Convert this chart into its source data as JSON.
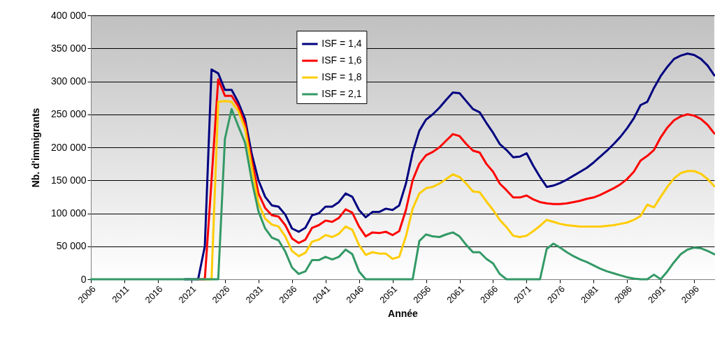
{
  "chart_data": {
    "type": "line",
    "xlabel": "Année",
    "ylabel": "Nb. d'immigrants",
    "x": [
      2006,
      2007,
      2008,
      2009,
      2010,
      2011,
      2012,
      2013,
      2014,
      2015,
      2016,
      2017,
      2018,
      2019,
      2020,
      2021,
      2022,
      2023,
      2024,
      2025,
      2026,
      2027,
      2028,
      2029,
      2030,
      2031,
      2032,
      2033,
      2034,
      2035,
      2036,
      2037,
      2038,
      2039,
      2040,
      2041,
      2042,
      2043,
      2044,
      2045,
      2046,
      2047,
      2048,
      2049,
      2050,
      2051,
      2052,
      2053,
      2054,
      2055,
      2056,
      2057,
      2058,
      2059,
      2060,
      2061,
      2062,
      2063,
      2064,
      2065,
      2066,
      2067,
      2068,
      2069,
      2070,
      2071,
      2072,
      2073,
      2074,
      2075,
      2076,
      2077,
      2078,
      2079,
      2080,
      2081,
      2082,
      2083,
      2084,
      2085,
      2086,
      2087,
      2088,
      2089,
      2090,
      2091,
      2092,
      2093,
      2094,
      2095,
      2096,
      2097,
      2098,
      2099
    ],
    "series": [
      {
        "name": "ISF = 1,4",
        "color": "#000080",
        "values": [
          null,
          null,
          null,
          null,
          null,
          null,
          null,
          null,
          null,
          null,
          null,
          null,
          null,
          null,
          0,
          0,
          0,
          50000,
          318000,
          312000,
          287000,
          287000,
          268000,
          243000,
          190000,
          150000,
          125000,
          112000,
          110000,
          98000,
          77000,
          72000,
          78000,
          97000,
          100000,
          110000,
          110000,
          117000,
          130000,
          125000,
          105000,
          94000,
          102000,
          102000,
          107000,
          105000,
          112000,
          145000,
          192000,
          225000,
          242000,
          250000,
          260000,
          272000,
          283000,
          282000,
          270000,
          258000,
          253000,
          237000,
          222000,
          205000,
          196000,
          185000,
          186000,
          191000,
          172000,
          155000,
          140000,
          142000,
          146000,
          151000,
          157000,
          163000,
          169000,
          177000,
          186000,
          195000,
          205000,
          216000,
          229000,
          244000,
          264000,
          269000,
          290000,
          308000,
          322000,
          334000,
          339000,
          342000,
          340000,
          334000,
          324000,
          309000
        ]
      },
      {
        "name": "ISF = 1,6",
        "color": "#ff0000",
        "values": [
          null,
          null,
          null,
          null,
          null,
          null,
          null,
          null,
          null,
          null,
          null,
          null,
          null,
          null,
          null,
          null,
          0,
          0,
          150000,
          303000,
          278000,
          278000,
          262000,
          235000,
          180000,
          130000,
          108000,
          97000,
          95000,
          82000,
          62000,
          55000,
          60000,
          78000,
          82000,
          89000,
          87000,
          93000,
          106000,
          101000,
          80000,
          65000,
          71000,
          70000,
          72000,
          67000,
          73000,
          105000,
          150000,
          175000,
          188000,
          193000,
          200000,
          210000,
          220000,
          217000,
          205000,
          195000,
          192000,
          175000,
          163000,
          145000,
          135000,
          124000,
          124000,
          127000,
          121000,
          117000,
          115000,
          114000,
          114000,
          115000,
          117000,
          119000,
          122000,
          124000,
          128000,
          133000,
          138000,
          144000,
          152000,
          163000,
          180000,
          187000,
          196000,
          215000,
          230000,
          241000,
          247000,
          250000,
          248000,
          243000,
          234000,
          221000
        ]
      },
      {
        "name": "ISF = 1,8",
        "color": "#ffcc00",
        "values": [
          null,
          null,
          null,
          null,
          null,
          null,
          null,
          null,
          null,
          null,
          null,
          null,
          null,
          null,
          null,
          null,
          null,
          0,
          0,
          269000,
          270000,
          269000,
          255000,
          228000,
          170000,
          115000,
          92000,
          83000,
          80000,
          65000,
          43000,
          35000,
          40000,
          57000,
          60000,
          67000,
          64000,
          69000,
          80000,
          75000,
          52000,
          37000,
          41000,
          39000,
          39000,
          31000,
          34000,
          65000,
          107000,
          130000,
          138000,
          140000,
          145000,
          152000,
          159000,
          155000,
          145000,
          133000,
          132000,
          118000,
          105000,
          90000,
          79000,
          66000,
          64000,
          66000,
          73000,
          81000,
          90000,
          87000,
          84000,
          82000,
          81000,
          80000,
          80000,
          80000,
          80000,
          81000,
          82000,
          84000,
          86000,
          90000,
          96000,
          113000,
          109000,
          125000,
          140000,
          153000,
          161000,
          164000,
          164000,
          160000,
          152000,
          141000
        ]
      },
      {
        "name": "ISF = 2,1",
        "color": "#339966",
        "values": [
          0,
          0,
          0,
          0,
          0,
          0,
          0,
          0,
          0,
          0,
          0,
          0,
          0,
          0,
          0,
          0,
          0,
          0,
          0,
          0,
          213000,
          258000,
          232000,
          207000,
          150000,
          103000,
          77000,
          63000,
          59000,
          42000,
          18000,
          8000,
          12000,
          29000,
          29000,
          34000,
          30000,
          34000,
          45000,
          38000,
          12000,
          0,
          0,
          0,
          0,
          0,
          0,
          0,
          0,
          58000,
          68000,
          65000,
          64000,
          68000,
          71000,
          65000,
          52000,
          41000,
          41000,
          31000,
          24000,
          8000,
          0,
          0,
          0,
          0,
          0,
          0,
          46000,
          54000,
          48000,
          41000,
          35000,
          30000,
          26000,
          21000,
          16000,
          12000,
          9000,
          6000,
          3000,
          1000,
          0,
          0,
          7000,
          0,
          12000,
          26000,
          38000,
          45000,
          48000,
          47000,
          43000,
          38000
        ]
      }
    ],
    "xlim": [
      2006,
      2099
    ],
    "xticks": [
      2006,
      2011,
      2016,
      2021,
      2026,
      2031,
      2036,
      2041,
      2046,
      2051,
      2056,
      2061,
      2066,
      2071,
      2076,
      2081,
      2086,
      2091,
      2096
    ],
    "ylim": [
      0,
      400000
    ],
    "yticks": [
      {
        "value": 0,
        "label": "0"
      },
      {
        "value": 50000,
        "label": "50 000"
      },
      {
        "value": 100000,
        "label": "100 000"
      },
      {
        "value": 150000,
        "label": "150 000"
      },
      {
        "value": 200000,
        "label": "200 000"
      },
      {
        "value": 250000,
        "label": "250 000"
      },
      {
        "value": 300000,
        "label": "300 000"
      },
      {
        "value": 350000,
        "label": "350 000"
      },
      {
        "value": 400000,
        "label": "400 000"
      }
    ],
    "grid": "y",
    "legend": "top"
  }
}
